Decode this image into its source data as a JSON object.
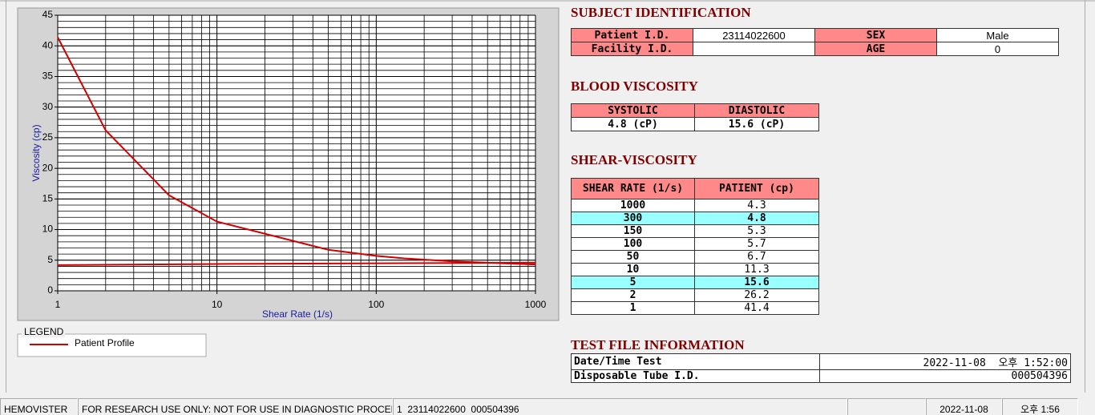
{
  "chart_data": {
    "type": "line",
    "xlabel": "Shear Rate (1/s)",
    "ylabel": "Viscosity (cp)",
    "xscale": "log",
    "xlim": [
      1,
      1000
    ],
    "xticks": [
      1,
      10,
      100,
      1000
    ],
    "ylim": [
      0,
      45
    ],
    "yticks": [
      0,
      5,
      10,
      15,
      20,
      25,
      30,
      35,
      40,
      45
    ],
    "grid": true,
    "minor_grid": true,
    "legend_title": "LEGEND",
    "series": [
      {
        "name": "Patient Profile",
        "color": "#d40000",
        "x": [
          1,
          2,
          5,
          10,
          50,
          100,
          150,
          300,
          1000
        ],
        "values": [
          41.4,
          26.2,
          15.6,
          11.3,
          6.7,
          5.7,
          5.3,
          4.8,
          4.3
        ]
      },
      {
        "color": "#d40000",
        "x": [
          1,
          12,
          1000
        ],
        "values": [
          4.2,
          4.4,
          4.6
        ]
      }
    ]
  },
  "subject_identification": {
    "title": "SUBJECT IDENTIFICATION",
    "rows": [
      [
        "Patient I.D.",
        "23114022600",
        "SEX",
        "Male"
      ],
      [
        "Facility I.D.",
        null,
        "AGE",
        "0"
      ]
    ]
  },
  "blood_viscosity": {
    "title": "BLOOD VISCOSITY",
    "headers": [
      "SYSTOLIC",
      "DIASTOLIC"
    ],
    "values": [
      "4.8 (cP)",
      "15.6 (cP)"
    ]
  },
  "shear_viscosity": {
    "title": "SHEAR-VISCOSITY",
    "headers": [
      "SHEAR RATE (1/s)",
      "PATIENT (cp)"
    ],
    "rows": [
      [
        1000,
        4.3
      ],
      [
        300,
        4.8
      ],
      [
        150,
        5.3
      ],
      [
        100,
        5.7
      ],
      [
        50,
        6.7
      ],
      [
        10,
        11.3
      ],
      [
        5,
        15.6
      ],
      [
        2,
        26.2
      ],
      [
        1,
        41.4
      ]
    ],
    "highlighted_rows": [
      1,
      6
    ]
  },
  "test_file_information": {
    "title": "TEST FILE INFORMATION",
    "rows": [
      [
        "Date/Time Test",
        "2022-11-08  오후 1:52:00"
      ],
      [
        "Disposable Tube I.D.",
        "000504396"
      ]
    ]
  },
  "status_bar": [
    "HEMOVISTER",
    "FOR RESEARCH USE ONLY: NOT FOR USE IN DIAGNOSTIC PROCEDURES",
    "1  23114022600  000504396",
    null,
    "2022-11-08",
    "오후 1:56"
  ]
}
